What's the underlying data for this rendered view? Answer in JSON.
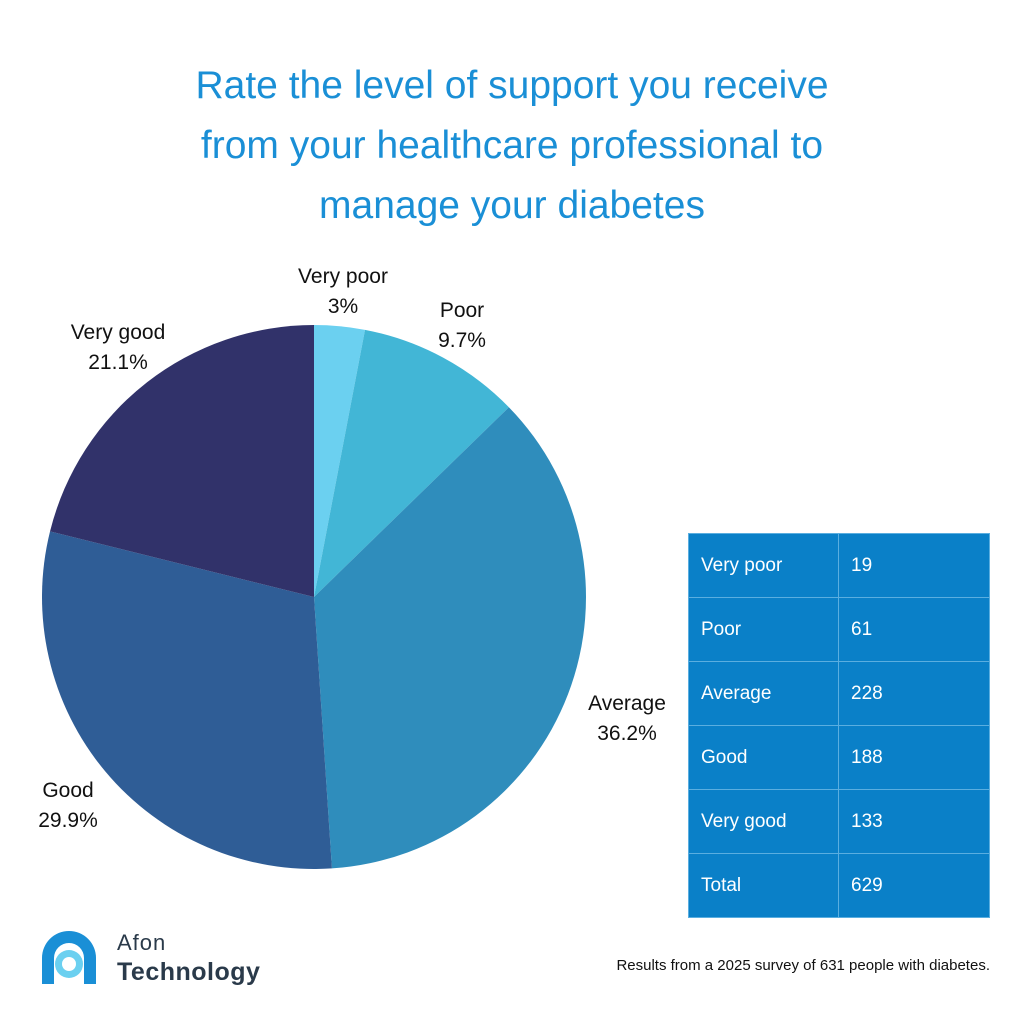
{
  "title_lines": [
    "Rate the level of support you receive",
    "from your healthcare professional to",
    "manage your diabetes"
  ],
  "chart_data": {
    "type": "pie",
    "categories": [
      "Very poor",
      "Poor",
      "Average",
      "Good",
      "Very good"
    ],
    "values": [
      3,
      9.7,
      36.2,
      29.9,
      21.1
    ],
    "value_labels": [
      "3%",
      "9.7%",
      "36.2%",
      "29.9%",
      "21.1%"
    ],
    "colors": [
      "#6bd0f0",
      "#42b6d6",
      "#2f8dbc",
      "#2f5d96",
      "#31326a"
    ],
    "start": "12 o'clock",
    "direction": "clockwise",
    "legend": "none"
  },
  "table": {
    "rows": [
      {
        "label": "Very poor",
        "value": "19"
      },
      {
        "label": "Poor",
        "value": "61"
      },
      {
        "label": "Average",
        "value": "228"
      },
      {
        "label": "Good",
        "value": "188"
      },
      {
        "label": "Very good",
        "value": "133"
      },
      {
        "label": "Total",
        "value": "629"
      }
    ],
    "background_color": "#0a80c8"
  },
  "footnote": "Results from a 2025 survey of 631 people with diabetes.",
  "logo": {
    "line1": "Afon",
    "line2": "Technology",
    "icon": "afon-logo-icon"
  }
}
